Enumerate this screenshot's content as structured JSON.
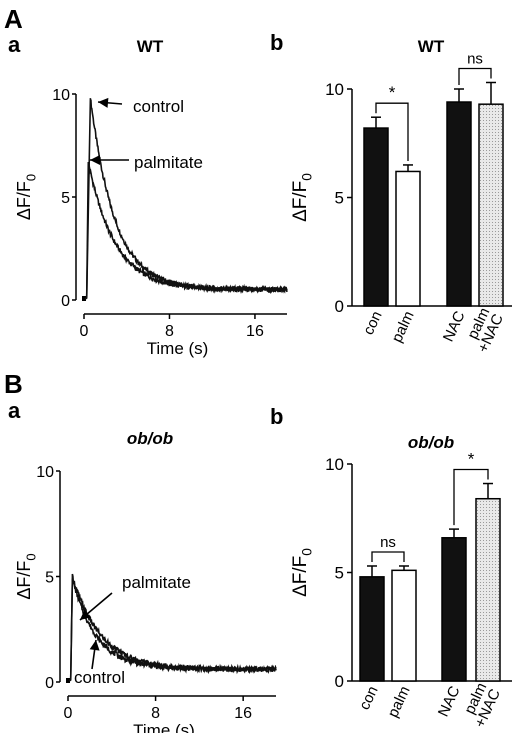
{
  "panels": {
    "A": {
      "letter": "A",
      "a_letter": "a",
      "b_letter": "b"
    },
    "B": {
      "letter": "B",
      "a_letter": "a",
      "b_letter": "b"
    }
  },
  "chart_data": [
    {
      "id": "Aa",
      "type": "line",
      "title": "WT",
      "xlabel": "Time (s)",
      "ylabel": "ΔF/F0",
      "xlim": [
        0,
        19
      ],
      "ylim": [
        0,
        10
      ],
      "xticks": [
        "0",
        "8",
        "16"
      ],
      "yticks": [
        "0",
        "5",
        "10"
      ],
      "series": [
        {
          "name": "control",
          "peak": 9.8,
          "peak_time": 0.6,
          "baseline": 0.5,
          "decay_tau": 2.3
        },
        {
          "name": "palmitate",
          "peak": 6.7,
          "peak_time": 0.4,
          "baseline": 0.5,
          "decay_tau": 2.5
        }
      ],
      "annotations": [
        "control",
        "palmitate"
      ]
    },
    {
      "id": "Ab",
      "type": "bar",
      "title": "WT",
      "ylabel": "ΔF/F0",
      "ylim": [
        0,
        10
      ],
      "yticks": [
        "0",
        "5",
        "10"
      ],
      "categories": [
        "con",
        "palm",
        "NAC",
        "palm +NAC"
      ],
      "category_lines": [
        [
          "con"
        ],
        [
          "palm"
        ],
        [
          "NAC"
        ],
        [
          "palm",
          "+NAC"
        ]
      ],
      "values": [
        8.2,
        6.2,
        9.4,
        9.3
      ],
      "errors": [
        0.5,
        0.3,
        0.6,
        1.0
      ],
      "fills": [
        "black",
        "white",
        "black",
        "light-gray"
      ],
      "significance": [
        {
          "from": 0,
          "to": 1,
          "label": "*"
        },
        {
          "from": 2,
          "to": 3,
          "label": "ns"
        }
      ]
    },
    {
      "id": "Ba",
      "type": "line",
      "title": "ob/ob",
      "xlabel": "Time (s)",
      "ylabel": "ΔF/F0",
      "xlim": [
        0,
        19
      ],
      "ylim": [
        0,
        10
      ],
      "xticks": [
        "0",
        "8",
        "16"
      ],
      "yticks": [
        "0",
        "5",
        "10"
      ],
      "series": [
        {
          "name": "palmitate",
          "peak": 5.0,
          "peak_time": 0.4,
          "baseline": 0.6,
          "decay_tau": 2.6
        },
        {
          "name": "control",
          "peak": 4.9,
          "peak_time": 0.4,
          "baseline": 0.6,
          "decay_tau": 2.2
        }
      ],
      "annotations": [
        "palmitate",
        "control"
      ]
    },
    {
      "id": "Bb",
      "type": "bar",
      "title": "ob/ob",
      "ylabel": "ΔF/F0",
      "ylim": [
        0,
        10
      ],
      "yticks": [
        "0",
        "5",
        "10"
      ],
      "categories": [
        "con",
        "palm",
        "NAC",
        "palm +NAC"
      ],
      "category_lines": [
        [
          "con"
        ],
        [
          "palm"
        ],
        [
          "NAC"
        ],
        [
          "palm",
          "+NAC"
        ]
      ],
      "values": [
        4.8,
        5.1,
        6.6,
        8.4
      ],
      "errors": [
        0.5,
        0.2,
        0.4,
        0.7
      ],
      "fills": [
        "black",
        "white",
        "black",
        "light-gray"
      ],
      "significance": [
        {
          "from": 0,
          "to": 1,
          "label": "ns"
        },
        {
          "from": 2,
          "to": 3,
          "label": "*"
        }
      ]
    }
  ]
}
